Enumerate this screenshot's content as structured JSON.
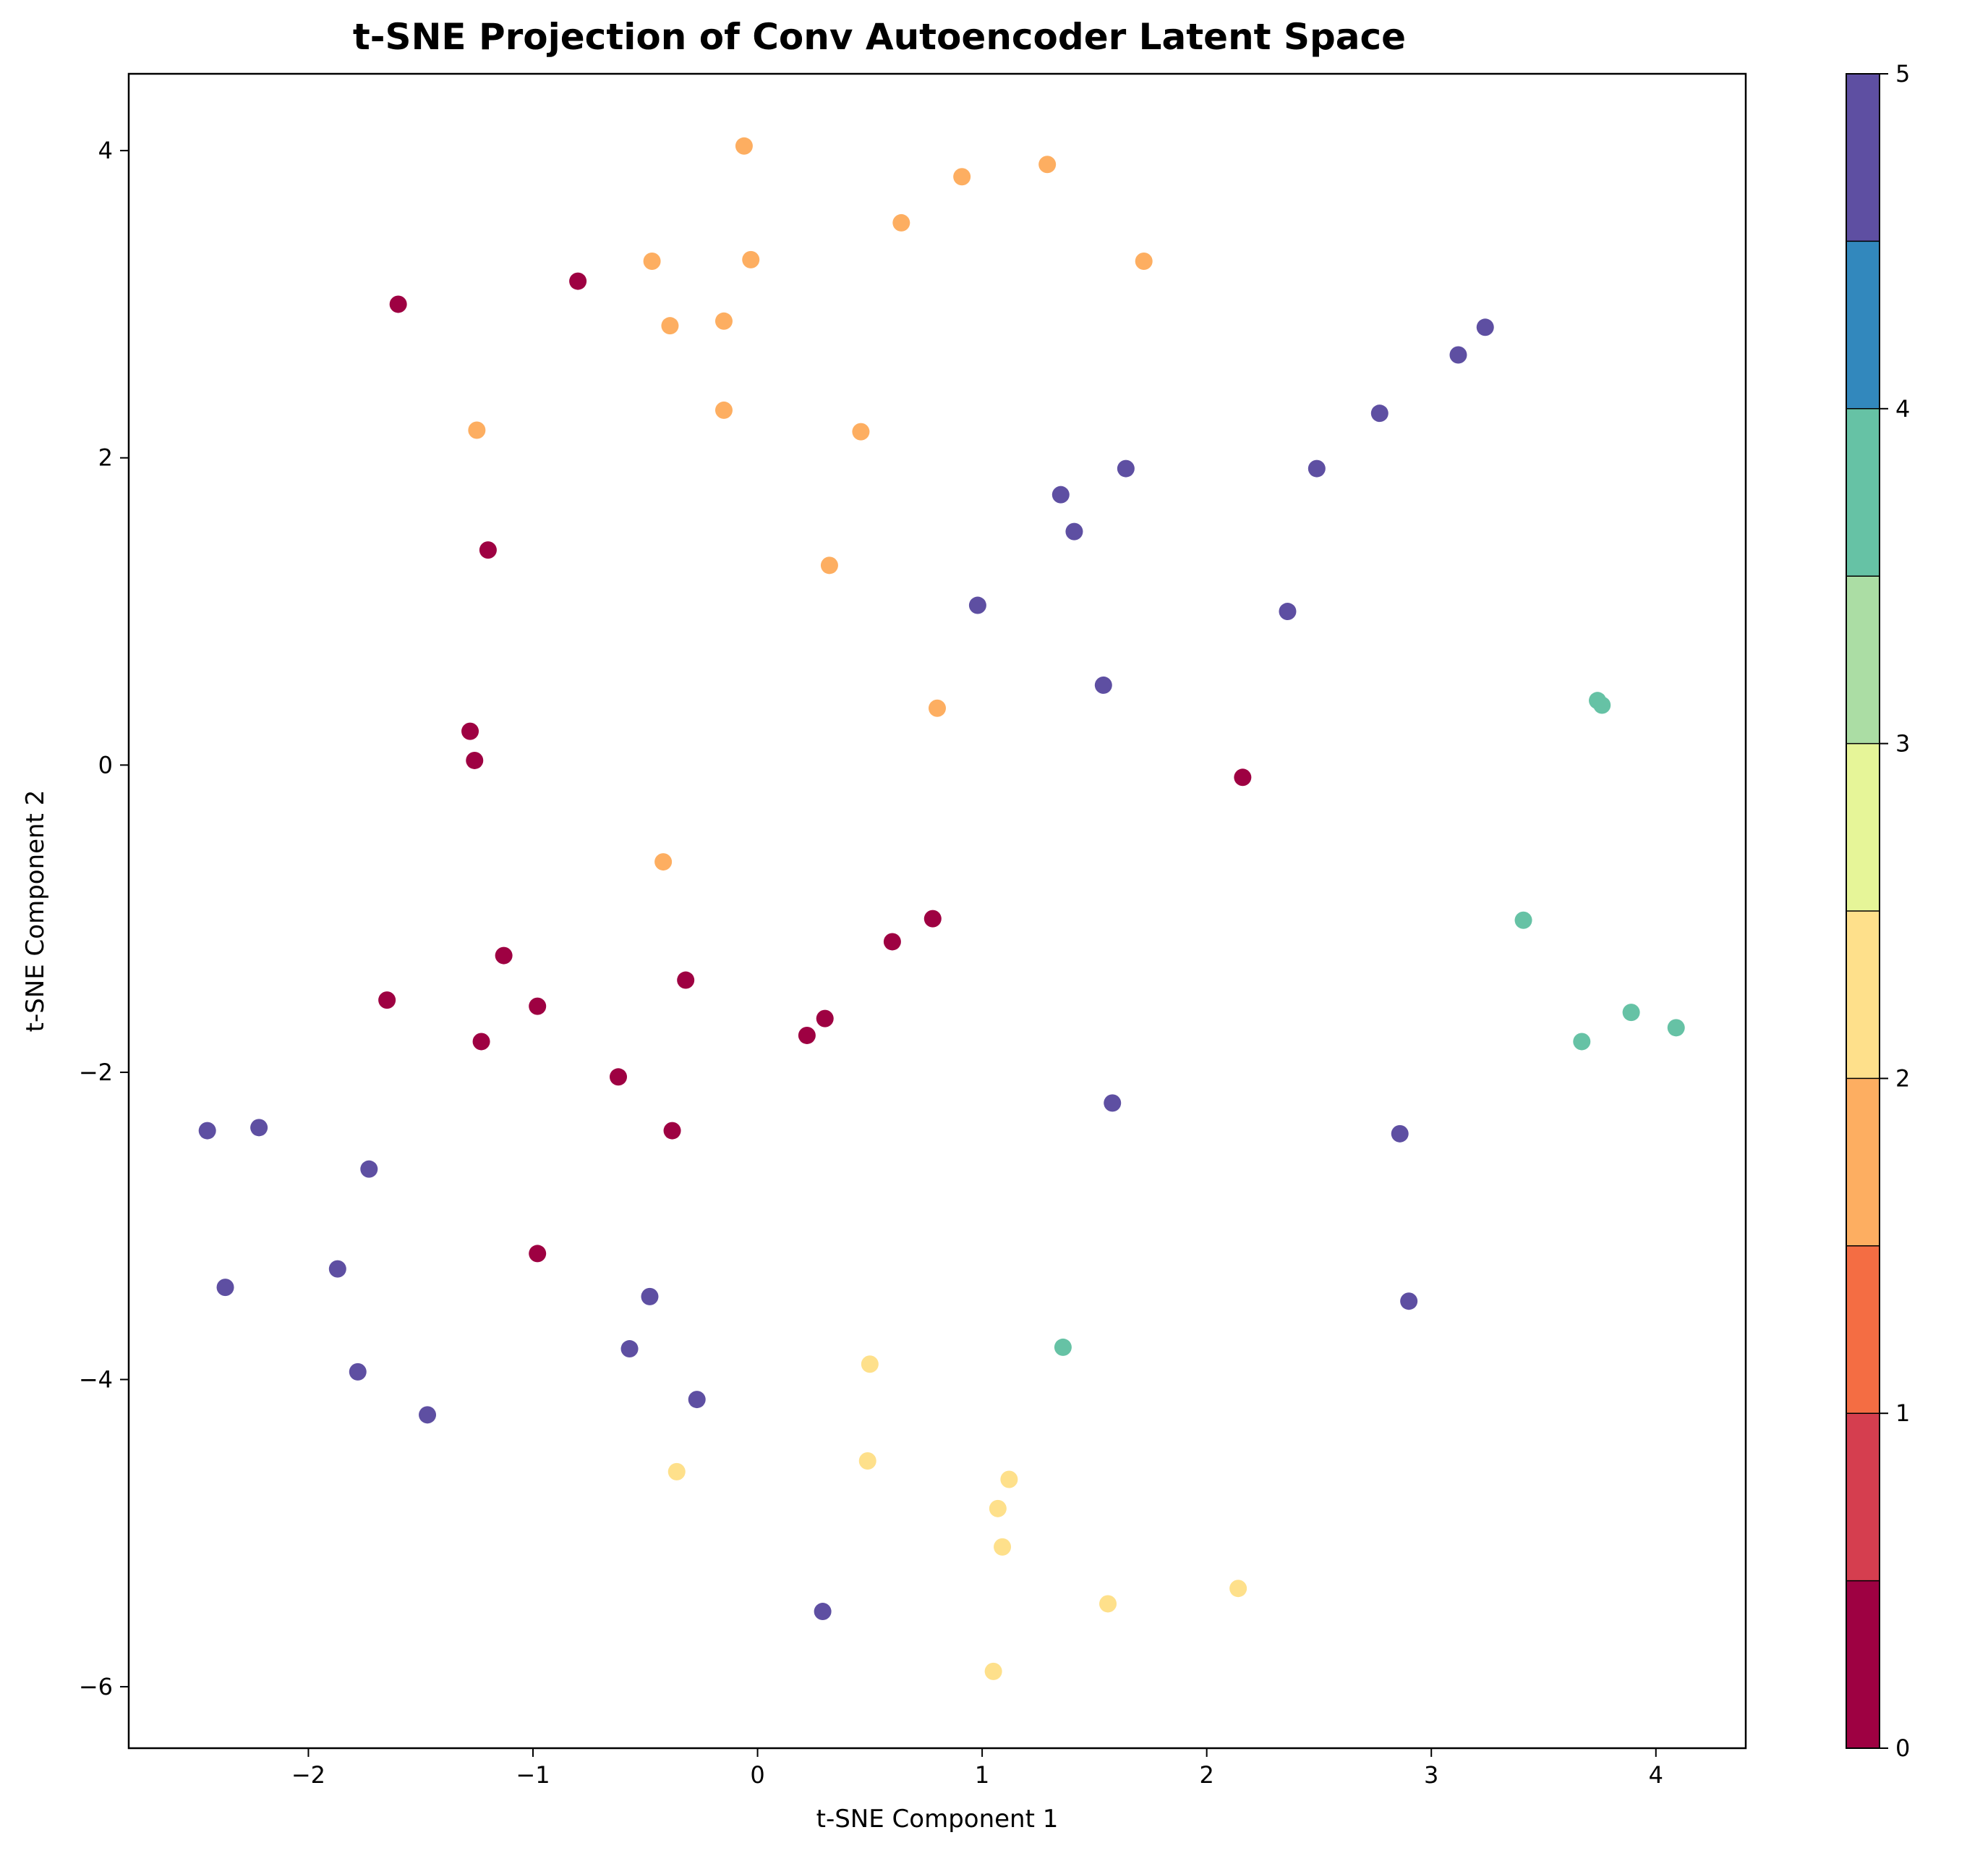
{
  "chart_data": {
    "type": "scatter",
    "title": "t-SNE Projection of Conv Autoencoder Latent Space",
    "xlabel": "t-SNE Component 1",
    "ylabel": "t-SNE Component 2",
    "xlim": [
      -2.8,
      4.4
    ],
    "ylim": [
      -6.4,
      4.5
    ],
    "xticks": [
      -2,
      -1,
      0,
      1,
      2,
      3,
      4
    ],
    "yticks": [
      -6,
      -4,
      -2,
      0,
      2,
      4
    ],
    "grid": false,
    "colormap": "Spectral",
    "colorbar": {
      "ticks": [
        0,
        1,
        2,
        3,
        4,
        5
      ],
      "range": [
        0,
        5
      ],
      "colors": [
        "#9e0142",
        "#d53e4f",
        "#f46d43",
        "#fdae61",
        "#fee08b",
        "#e6f598",
        "#abdda4",
        "#66c2a5",
        "#3288bd",
        "#5e4fa2"
      ]
    },
    "points": [
      {
        "x": -1.6,
        "y": 3.0,
        "label": 0
      },
      {
        "x": -0.8,
        "y": 3.15,
        "label": 0
      },
      {
        "x": -1.2,
        "y": 1.4,
        "label": 0
      },
      {
        "x": -1.28,
        "y": 0.22,
        "label": 0
      },
      {
        "x": -1.26,
        "y": 0.03,
        "label": 0
      },
      {
        "x": 2.16,
        "y": -0.08,
        "label": 0
      },
      {
        "x": -1.13,
        "y": -1.24,
        "label": 0
      },
      {
        "x": -1.65,
        "y": -1.53,
        "label": 0
      },
      {
        "x": -0.98,
        "y": -1.57,
        "label": 0
      },
      {
        "x": -1.23,
        "y": -1.8,
        "label": 0
      },
      {
        "x": -0.32,
        "y": -1.4,
        "label": 0
      },
      {
        "x": 0.6,
        "y": -1.15,
        "label": 0
      },
      {
        "x": 0.78,
        "y": -1.0,
        "label": 0
      },
      {
        "x": 0.3,
        "y": -1.65,
        "label": 0
      },
      {
        "x": 0.22,
        "y": -1.76,
        "label": 0
      },
      {
        "x": -0.62,
        "y": -2.03,
        "label": 0
      },
      {
        "x": -0.38,
        "y": -2.38,
        "label": 0
      },
      {
        "x": -0.98,
        "y": -3.18,
        "label": 0
      },
      {
        "x": -0.06,
        "y": 4.03,
        "label": 1.5
      },
      {
        "x": 0.91,
        "y": 3.83,
        "label": 1.5
      },
      {
        "x": 1.29,
        "y": 3.91,
        "label": 1.5
      },
      {
        "x": 0.64,
        "y": 3.53,
        "label": 1.5
      },
      {
        "x": -0.47,
        "y": 3.28,
        "label": 1.5
      },
      {
        "x": -0.03,
        "y": 3.29,
        "label": 1.5
      },
      {
        "x": 1.72,
        "y": 3.28,
        "label": 1.5
      },
      {
        "x": -0.39,
        "y": 2.86,
        "label": 1.5
      },
      {
        "x": -0.15,
        "y": 2.89,
        "label": 1.5
      },
      {
        "x": -1.25,
        "y": 2.18,
        "label": 1.5
      },
      {
        "x": -0.15,
        "y": 2.31,
        "label": 1.5
      },
      {
        "x": 0.46,
        "y": 2.17,
        "label": 1.5
      },
      {
        "x": 0.32,
        "y": 1.3,
        "label": 1.5
      },
      {
        "x": 0.8,
        "y": 0.37,
        "label": 1.5
      },
      {
        "x": -0.42,
        "y": -0.63,
        "label": 1.5
      },
      {
        "x": 3.24,
        "y": 2.85,
        "label": 4.5
      },
      {
        "x": 3.12,
        "y": 2.67,
        "label": 4.5
      },
      {
        "x": 2.77,
        "y": 2.29,
        "label": 4.5
      },
      {
        "x": 1.64,
        "y": 1.93,
        "label": 4.5
      },
      {
        "x": 2.49,
        "y": 1.93,
        "label": 4.5
      },
      {
        "x": 1.35,
        "y": 1.76,
        "label": 4.5
      },
      {
        "x": 1.41,
        "y": 1.52,
        "label": 4.5
      },
      {
        "x": 0.98,
        "y": 1.04,
        "label": 4.5
      },
      {
        "x": 2.36,
        "y": 1.0,
        "label": 4.5
      },
      {
        "x": 1.54,
        "y": 0.52,
        "label": 4.5
      },
      {
        "x": 3.74,
        "y": 0.42,
        "label": 3.5
      },
      {
        "x": 3.76,
        "y": 0.39,
        "label": 3.5
      },
      {
        "x": 3.41,
        "y": -1.01,
        "label": 3.5
      },
      {
        "x": 3.89,
        "y": -1.61,
        "label": 3.5
      },
      {
        "x": 4.09,
        "y": -1.71,
        "label": 3.5
      },
      {
        "x": 3.67,
        "y": -1.8,
        "label": 3.5
      },
      {
        "x": 1.36,
        "y": -3.79,
        "label": 3.5
      },
      {
        "x": -2.45,
        "y": -2.38,
        "label": 5
      },
      {
        "x": -2.22,
        "y": -2.36,
        "label": 5
      },
      {
        "x": -1.73,
        "y": -2.63,
        "label": 5
      },
      {
        "x": -1.87,
        "y": -3.28,
        "label": 5
      },
      {
        "x": -2.37,
        "y": -3.4,
        "label": 5
      },
      {
        "x": -1.78,
        "y": -3.95,
        "label": 5
      },
      {
        "x": -1.47,
        "y": -4.23,
        "label": 5
      },
      {
        "x": -0.48,
        "y": -3.46,
        "label": 5
      },
      {
        "x": -0.57,
        "y": -3.8,
        "label": 5
      },
      {
        "x": -0.27,
        "y": -4.13,
        "label": 5
      },
      {
        "x": 1.58,
        "y": -2.2,
        "label": 5
      },
      {
        "x": 2.86,
        "y": -2.4,
        "label": 5
      },
      {
        "x": 2.9,
        "y": -3.49,
        "label": 5
      },
      {
        "x": 0.29,
        "y": -5.51,
        "label": 5
      },
      {
        "x": 0.5,
        "y": -3.9,
        "label": 2.3
      },
      {
        "x": 0.49,
        "y": -4.53,
        "label": 2.3
      },
      {
        "x": -0.36,
        "y": -4.6,
        "label": 2.3
      },
      {
        "x": 1.12,
        "y": -4.65,
        "label": 2.3
      },
      {
        "x": 1.07,
        "y": -4.84,
        "label": 2.3
      },
      {
        "x": 1.09,
        "y": -5.09,
        "label": 2.3
      },
      {
        "x": 2.14,
        "y": -5.36,
        "label": 2.3
      },
      {
        "x": 1.56,
        "y": -5.46,
        "label": 2.3
      },
      {
        "x": 1.05,
        "y": -5.9,
        "label": 2.3
      }
    ]
  }
}
